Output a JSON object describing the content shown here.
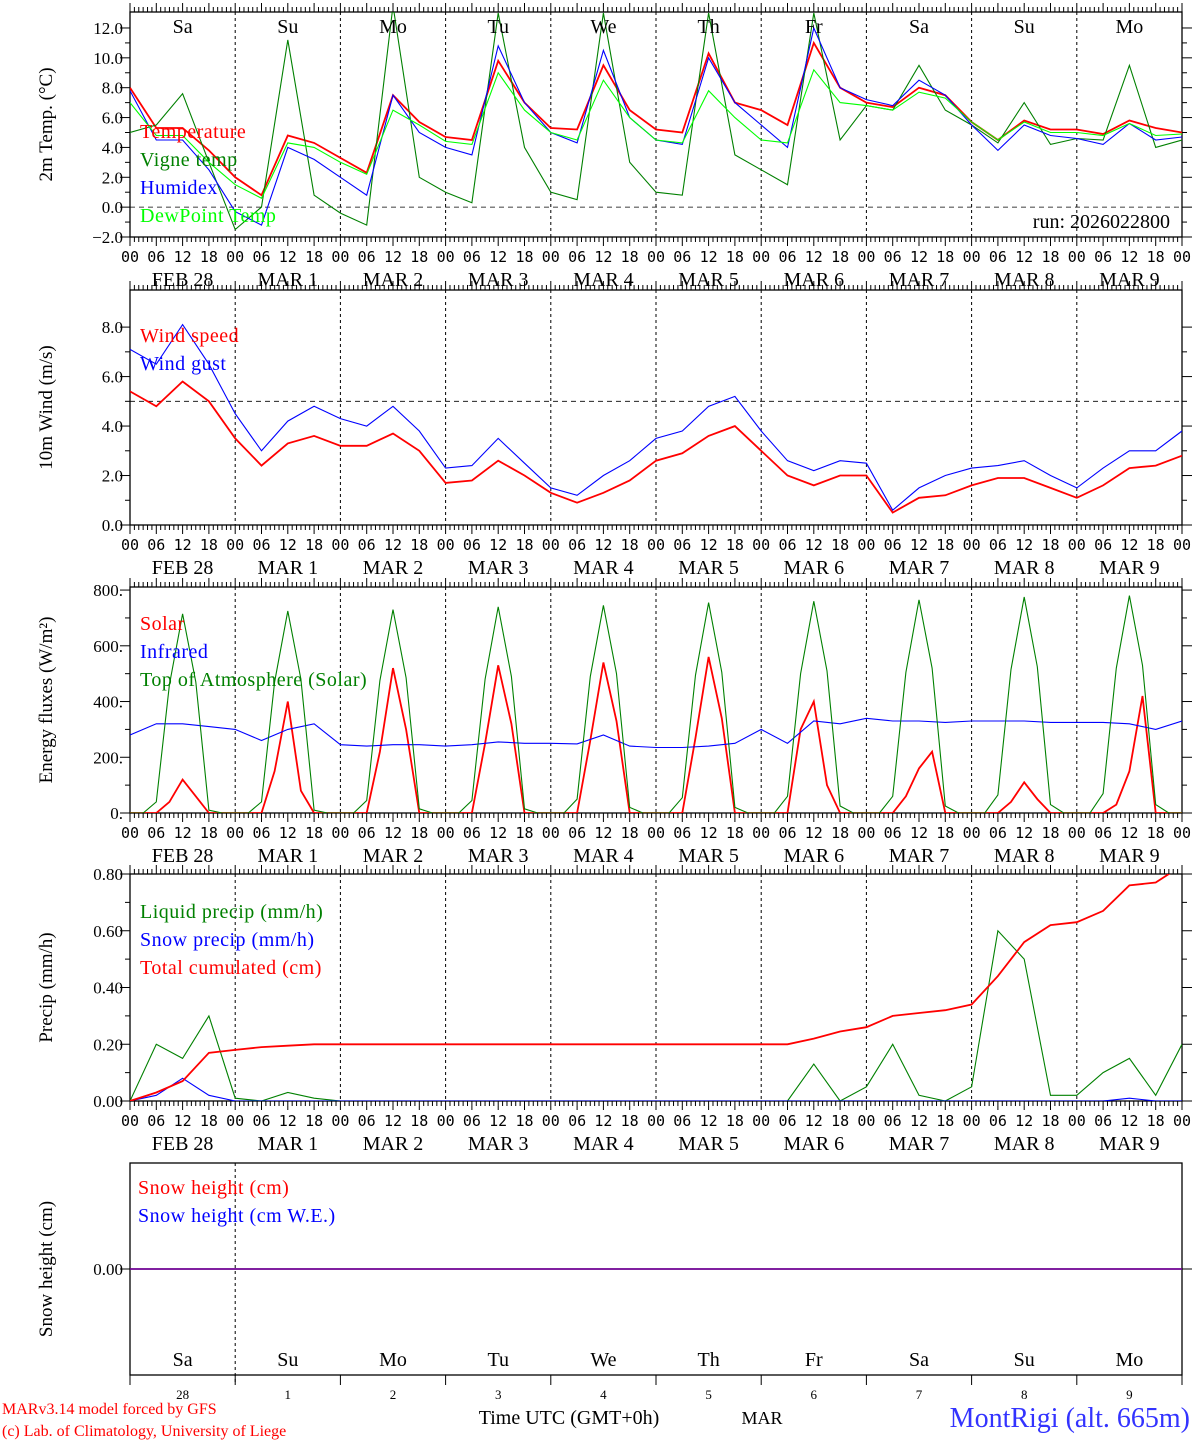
{
  "run_label": "run: 2026022800",
  "day_names": [
    {
      "label": "Sa",
      "color": "#ff0000"
    },
    {
      "label": "Su",
      "color": "#ff0000"
    },
    {
      "label": "Mo",
      "color": "#000000"
    },
    {
      "label": "Tu",
      "color": "#000000"
    },
    {
      "label": "We",
      "color": "#000000"
    },
    {
      "label": "Th",
      "color": "#000000"
    },
    {
      "label": "Fr",
      "color": "#000000"
    },
    {
      "label": "Sa",
      "color": "#ff0000"
    },
    {
      "label": "Su",
      "color": "#ff0000"
    },
    {
      "label": "Mo",
      "color": "#000000"
    }
  ],
  "date_labels": [
    "FEB 28",
    "MAR  1",
    "MAR  2",
    "MAR  3",
    "MAR  4",
    "MAR  5",
    "MAR  6",
    "MAR  7",
    "MAR  8",
    "MAR  9"
  ],
  "hour_labels": [
    "00",
    "06",
    "12",
    "18"
  ],
  "day_numbers": [
    "28",
    "1",
    "2",
    "3",
    "4",
    "5",
    "6",
    "7",
    "8",
    "9"
  ],
  "footer": {
    "model": "MARv3.14 model forced by GFS",
    "copyright": "(c) Lab. of Climatology, University of Liege",
    "time_axis": "Time UTC (GMT+0h)",
    "month": "MAR",
    "station": "MontRigi (alt. 665m)"
  },
  "chart_data": [
    {
      "type": "line",
      "ylabel": "2m Temp. (°C)",
      "ylim": [
        -2,
        13.07
      ],
      "x_start_hours": 0,
      "hline": 0,
      "yticks": [
        {
          "v": -2,
          "label": "−2.0"
        },
        {
          "v": 0,
          "label": "0.0"
        },
        {
          "v": 2,
          "label": "2.0"
        },
        {
          "v": 4,
          "label": "4.0"
        },
        {
          "v": 6,
          "label": "6.0"
        },
        {
          "v": 8,
          "label": "8.0"
        },
        {
          "v": 10,
          "label": "10.0"
        },
        {
          "v": 12,
          "label": "12.0"
        }
      ],
      "series": [
        {
          "name": "Temperature",
          "color": "#ff0000",
          "step_hours": 6,
          "values": [
            8.0,
            5.3,
            5.3,
            3.8,
            2.0,
            0.8,
            4.8,
            4.3,
            3.3,
            2.3,
            7.5,
            5.7,
            4.7,
            4.5,
            9.8,
            7.0,
            5.3,
            5.2,
            9.5,
            6.5,
            5.2,
            5.0,
            10.3,
            7.0,
            6.5,
            5.5,
            11.0,
            8.0,
            7.0,
            6.7,
            8.0,
            7.5,
            5.7,
            4.5,
            5.8,
            5.2,
            5.2,
            4.9,
            5.8,
            5.3,
            5.0
          ]
        },
        {
          "name": "Vigne temp",
          "color": "#008000",
          "step_hours": 6,
          "values": [
            5.0,
            5.5,
            7.6,
            3.0,
            -1.5,
            0.0,
            11.2,
            0.8,
            -0.4,
            -1.2,
            13.5,
            2.0,
            1.0,
            0.3,
            13.0,
            4.0,
            1.0,
            0.5,
            13.0,
            3.0,
            1.0,
            0.8,
            13.0,
            3.5,
            2.5,
            1.5,
            13.0,
            4.5,
            6.8,
            6.5,
            9.5,
            6.5,
            5.5,
            4.3,
            7.0,
            4.2,
            4.6,
            4.5,
            9.5,
            4.0,
            4.5
          ]
        },
        {
          "name": "Humidex",
          "color": "#0000ff",
          "step_hours": 6,
          "values": [
            7.8,
            4.5,
            4.5,
            2.5,
            -0.3,
            -1.2,
            4.0,
            3.2,
            2.0,
            0.8,
            7.5,
            5.0,
            4.0,
            3.5,
            10.8,
            7.0,
            5.0,
            4.3,
            10.5,
            6.0,
            4.5,
            4.2,
            10.0,
            7.0,
            5.5,
            4.0,
            12.0,
            8.0,
            7.2,
            6.8,
            8.5,
            7.5,
            5.5,
            3.8,
            5.5,
            4.8,
            4.6,
            4.2,
            5.6,
            4.5,
            4.7
          ]
        },
        {
          "name": "DewPoint Temp",
          "color": "#00ff00",
          "step_hours": 6,
          "values": [
            7.0,
            4.8,
            4.8,
            3.0,
            1.5,
            0.6,
            4.3,
            4.0,
            3.0,
            2.2,
            6.5,
            5.5,
            4.4,
            4.2,
            9.0,
            6.5,
            5.0,
            4.5,
            8.5,
            6.0,
            4.5,
            4.3,
            7.8,
            6.0,
            4.5,
            4.3,
            9.2,
            7.0,
            6.8,
            6.5,
            7.7,
            7.3,
            5.7,
            4.5,
            5.7,
            5.0,
            5.0,
            4.8,
            5.6,
            4.8,
            4.9
          ]
        }
      ]
    },
    {
      "type": "line",
      "ylabel": "10m Wind (m/s)",
      "ylim": [
        0,
        9.5
      ],
      "x_start_hours": 0,
      "hline": 5,
      "yticks": [
        {
          "v": 0,
          "label": "0.0"
        },
        {
          "v": 2,
          "label": "2.0"
        },
        {
          "v": 4,
          "label": "4.0"
        },
        {
          "v": 6,
          "label": "6.0"
        },
        {
          "v": 8,
          "label": "8.0"
        }
      ],
      "series": [
        {
          "name": "Wind speed",
          "color": "#ff0000",
          "step_hours": 6,
          "values": [
            5.4,
            4.8,
            5.8,
            5.0,
            3.5,
            2.4,
            3.3,
            3.6,
            3.2,
            3.2,
            3.7,
            3.0,
            1.7,
            1.8,
            2.6,
            2.0,
            1.3,
            0.9,
            1.3,
            1.8,
            2.6,
            2.9,
            3.6,
            4.0,
            3.0,
            2.0,
            1.6,
            2.0,
            2.0,
            0.5,
            1.1,
            1.2,
            1.6,
            1.9,
            1.9,
            1.5,
            1.1,
            1.6,
            2.3,
            2.4,
            2.8
          ]
        },
        {
          "name": "Wind gust",
          "color": "#0000ff",
          "step_hours": 6,
          "values": [
            7.1,
            6.5,
            8.1,
            6.5,
            4.5,
            3.0,
            4.2,
            4.8,
            4.3,
            4.0,
            4.8,
            3.8,
            2.3,
            2.4,
            3.5,
            2.5,
            1.5,
            1.2,
            2.0,
            2.6,
            3.5,
            3.8,
            4.8,
            5.2,
            3.8,
            2.6,
            2.2,
            2.6,
            2.5,
            0.6,
            1.5,
            2.0,
            2.3,
            2.4,
            2.6,
            2.0,
            1.5,
            2.3,
            3.0,
            3.0,
            3.8
          ]
        }
      ]
    },
    {
      "type": "line",
      "ylabel": "Energy fluxes (W/m²)",
      "ylim": [
        0,
        811
      ],
      "x_start_hours": 0,
      "yticks": [
        {
          "v": 0,
          "label": "0."
        },
        {
          "v": 200,
          "label": "200."
        },
        {
          "v": 400,
          "label": "400."
        },
        {
          "v": 600,
          "label": "600."
        },
        {
          "v": 800,
          "label": "800."
        }
      ],
      "series": [
        {
          "name": "Solar",
          "color": "#ff0000",
          "step_hours": 3,
          "values": [
            0,
            0,
            0,
            40,
            120,
            60,
            0,
            0,
            0,
            0,
            0,
            150,
            400,
            80,
            0,
            0,
            0,
            0,
            0,
            220,
            520,
            300,
            0,
            0,
            0,
            0,
            0,
            250,
            530,
            320,
            0,
            0,
            0,
            0,
            0,
            260,
            540,
            330,
            0,
            0,
            0,
            0,
            0,
            270,
            560,
            340,
            0,
            0,
            0,
            0,
            0,
            300,
            400,
            100,
            0,
            0,
            0,
            0,
            0,
            60,
            160,
            220,
            0,
            0,
            0,
            0,
            0,
            40,
            110,
            50,
            0,
            0,
            0,
            0,
            0,
            30,
            150,
            420,
            0,
            0,
            0
          ]
        },
        {
          "name": "Infrared",
          "color": "#0000ff",
          "step_hours": 6,
          "values": [
            280,
            320,
            320,
            310,
            300,
            260,
            300,
            320,
            245,
            240,
            245,
            245,
            240,
            245,
            255,
            250,
            250,
            248,
            280,
            240,
            235,
            235,
            240,
            250,
            300,
            250,
            330,
            320,
            340,
            330,
            330,
            325,
            330,
            330,
            330,
            325,
            325,
            325,
            320,
            300,
            330
          ]
        },
        {
          "name": "Top of Atmosphere (Solar)",
          "color": "#008000",
          "step_hours": 3,
          "values": [
            0,
            0,
            40,
            460,
            715,
            470,
            10,
            0,
            0,
            0,
            40,
            470,
            725,
            480,
            10,
            0,
            0,
            0,
            45,
            475,
            730,
            485,
            15,
            0,
            0,
            0,
            45,
            480,
            740,
            490,
            15,
            0,
            0,
            0,
            50,
            490,
            745,
            500,
            20,
            0,
            0,
            0,
            55,
            495,
            755,
            505,
            20,
            0,
            0,
            0,
            60,
            500,
            760,
            510,
            25,
            0,
            0,
            0,
            60,
            505,
            765,
            520,
            25,
            0,
            0,
            0,
            65,
            515,
            775,
            525,
            30,
            0,
            0,
            0,
            70,
            520,
            780,
            530,
            30,
            0,
            0
          ]
        }
      ]
    },
    {
      "type": "line",
      "ylabel": "Precip (mm/h)",
      "ylim": [
        0,
        0.8
      ],
      "x_start_hours": 0,
      "yticks": [
        {
          "v": 0,
          "label": "0.00"
        },
        {
          "v": 0.2,
          "label": "0.20"
        },
        {
          "v": 0.4,
          "label": "0.40"
        },
        {
          "v": 0.6,
          "label": "0.60"
        },
        {
          "v": 0.8,
          "label": "0.80"
        }
      ],
      "series": [
        {
          "name": "Liquid precip (mm/h)",
          "color": "#008000",
          "step_hours": 6,
          "values": [
            0,
            0.2,
            0.15,
            0.3,
            0.01,
            0,
            0.03,
            0.01,
            0,
            0,
            0,
            0,
            0,
            0,
            0,
            0,
            0,
            0,
            0,
            0,
            0,
            0,
            0,
            0,
            0,
            0,
            0.13,
            0,
            0.05,
            0.2,
            0.02,
            0,
            0.05,
            0.6,
            0.5,
            0.02,
            0.02,
            0.1,
            0.15,
            0.02,
            0.2
          ]
        },
        {
          "name": "Snow precip (mm/h)",
          "color": "#0000ff",
          "step_hours": 6,
          "values": [
            0,
            0.02,
            0.08,
            0.02,
            0,
            0,
            0,
            0,
            0,
            0,
            0,
            0,
            0,
            0,
            0,
            0,
            0,
            0,
            0,
            0,
            0,
            0,
            0,
            0,
            0,
            0,
            0,
            0,
            0,
            0,
            0,
            0,
            0,
            0,
            0,
            0,
            0,
            0,
            0.01,
            0,
            0
          ]
        },
        {
          "name": "Total cumulated (cm)",
          "color": "#ff0000",
          "step_hours": 6,
          "values": [
            0,
            0.03,
            0.07,
            0.17,
            0.18,
            0.19,
            0.195,
            0.2,
            0.2,
            0.2,
            0.2,
            0.2,
            0.2,
            0.2,
            0.2,
            0.2,
            0.2,
            0.2,
            0.2,
            0.2,
            0.2,
            0.2,
            0.2,
            0.2,
            0.2,
            0.2,
            0.22,
            0.245,
            0.26,
            0.3,
            0.31,
            0.32,
            0.34,
            0.44,
            0.56,
            0.62,
            0.63,
            0.67,
            0.76,
            0.77,
            0.83
          ]
        }
      ]
    },
    {
      "type": "line",
      "ylabel": "Snow height (cm)",
      "ylim": [
        -1,
        1
      ],
      "x_start_hours": 0,
      "yticks": [
        {
          "v": 0,
          "label": "0.00"
        }
      ],
      "series": [
        {
          "name": "Snow height (cm)",
          "color": "#ff0000",
          "step_hours": 240,
          "values": [
            0,
            0
          ]
        },
        {
          "name": "Snow height (cm W.E.)",
          "color": "#0000ff",
          "step_hours": 240,
          "values": [
            0,
            0
          ]
        }
      ]
    }
  ]
}
